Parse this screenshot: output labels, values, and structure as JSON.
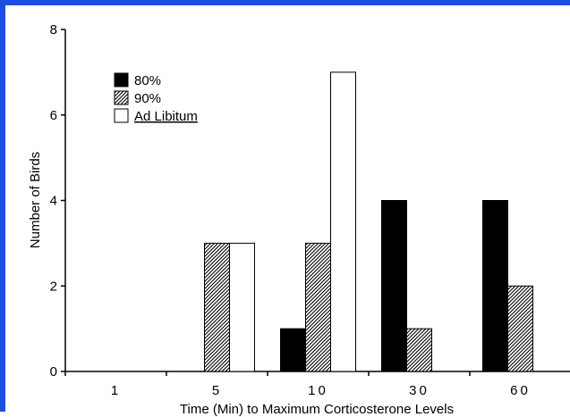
{
  "chart_data": {
    "type": "bar",
    "categories": [
      "1",
      "5",
      "10",
      "30",
      "60"
    ],
    "series": [
      {
        "name": "80%",
        "values": [
          0,
          0,
          1,
          4,
          4
        ],
        "fill": "solid",
        "color": "#000000"
      },
      {
        "name": "90%",
        "values": [
          0,
          3,
          3,
          1,
          2
        ],
        "fill": "hatched",
        "color": "#000000"
      },
      {
        "name": "Ad Libitum",
        "values": [
          0,
          3,
          7,
          0,
          0
        ],
        "fill": "white",
        "color": "#ffffff"
      }
    ],
    "xlabel": "Time (Min) to Maximum Corticosterone Levels",
    "ylabel": "Number of Birds",
    "ylim": [
      0,
      8
    ],
    "yticks": [
      "0",
      "2",
      "4",
      "6",
      "8"
    ],
    "grid": false,
    "legend_position": "top-left"
  },
  "colors": {
    "frame": "#1a4fe0",
    "ink": "#000000",
    "background": "#ffffff"
  }
}
